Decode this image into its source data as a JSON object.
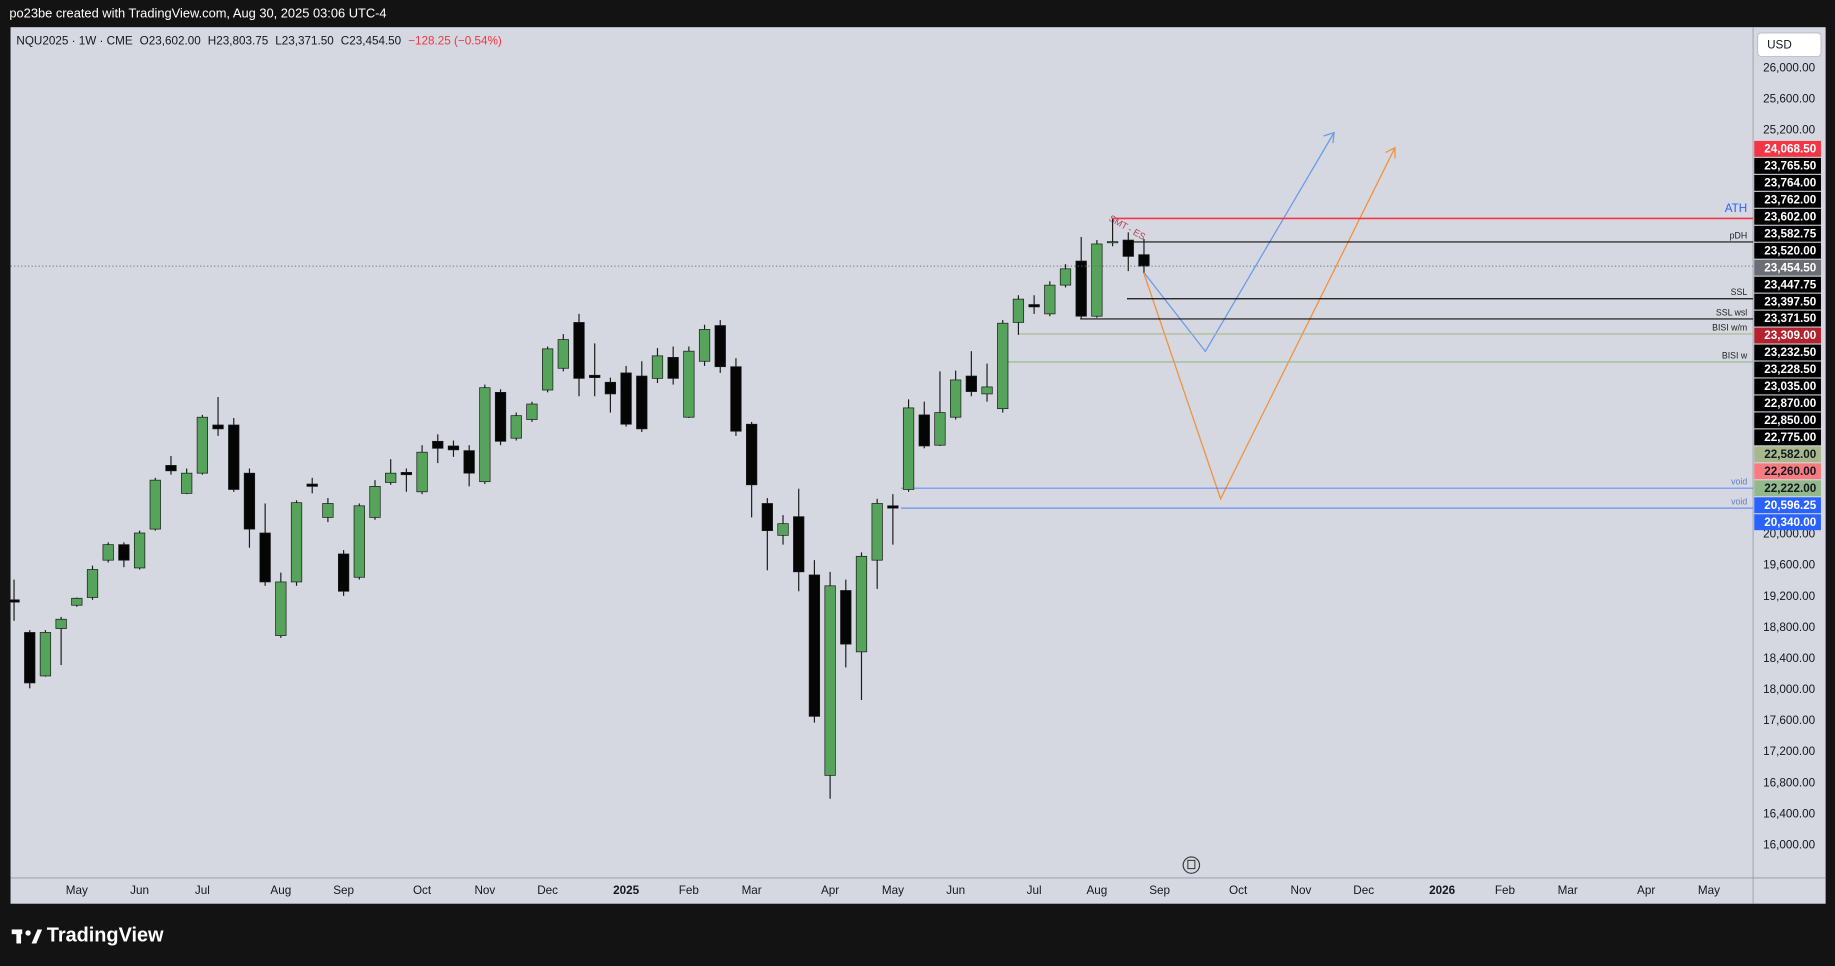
{
  "header": {
    "caption": "po23be created with TradingView.com, Aug 30, 2025 03:06 UTC-4"
  },
  "legend": [
    "NQU2025 · 1W · CME",
    "O23,602.00",
    "H23,803.75",
    "L23,371.50",
    "C23,454.50",
    "−128.25 (−0.54%)"
  ],
  "currency": "USD",
  "footer": "TradingView",
  "annotations": [
    "SMT - ES"
  ],
  "chart_data": {
    "type": "candlestick",
    "up_color": "#56a35b",
    "down_color": "#050505",
    "ylim": [
      15580,
      26530
    ],
    "yticks": [
      {
        "value": 26000,
        "label": "26,000.00"
      },
      {
        "value": 25600,
        "label": "25,600.00"
      },
      {
        "value": 25200,
        "label": "25,200.00"
      },
      {
        "value": 20000,
        "label": "20,000.00"
      },
      {
        "value": 19600,
        "label": "19,600.00"
      },
      {
        "value": 19200,
        "label": "19,200.00"
      },
      {
        "value": 18800,
        "label": "18,800.00"
      },
      {
        "value": 18400,
        "label": "18,400.00"
      },
      {
        "value": 18000,
        "label": "18,000.00"
      },
      {
        "value": 17600,
        "label": "17,600.00"
      },
      {
        "value": 17200,
        "label": "17,200.00"
      },
      {
        "value": 16800,
        "label": "16,800.00"
      },
      {
        "value": 16400,
        "label": "16,400.00"
      },
      {
        "value": 16000,
        "label": "16,000.00"
      }
    ],
    "grid": false,
    "categories": [
      null,
      null,
      null,
      null,
      "May",
      null,
      null,
      null,
      "Jun",
      null,
      null,
      null,
      "Jul",
      null,
      null,
      null,
      null,
      "Aug",
      null,
      null,
      null,
      "Sep",
      null,
      null,
      null,
      null,
      "Oct",
      null,
      null,
      null,
      "Nov",
      null,
      null,
      null,
      "Dec",
      null,
      null,
      null,
      null,
      "2025",
      null,
      null,
      null,
      "Feb",
      null,
      null,
      null,
      "Mar",
      null,
      null,
      null,
      null,
      "Apr",
      null,
      null,
      null,
      "May",
      null,
      null,
      null,
      "Jun",
      null,
      null,
      null,
      null,
      "Jul",
      null,
      null,
      null,
      "Aug",
      null,
      null,
      null,
      "Sep",
      null,
      null,
      null,
      null,
      "Oct",
      null,
      null,
      null,
      "Nov",
      null,
      null,
      null,
      "Dec",
      null,
      null,
      null,
      null,
      "2026",
      null,
      null,
      null,
      "Feb",
      null,
      null,
      null,
      "Mar",
      null,
      null,
      null,
      null,
      "Apr",
      null,
      null,
      null,
      "May",
      null,
      null
    ],
    "open": [
      19160,
      18740,
      18180,
      18790,
      19090,
      19190,
      19670,
      19870,
      19570,
      20070,
      20890,
      20530,
      20790,
      21410,
      21410,
      20790,
      20020,
      18700,
      19390,
      20650,
      20220,
      19750,
      19450,
      20220,
      20670,
      20800,
      20550,
      21200,
      21140,
      21080,
      20680,
      21830,
      21240,
      21480,
      21860,
      22140,
      22730,
      22050,
      21960,
      22080,
      22040,
      22010,
      22280,
      21510,
      22230,
      22690,
      22160,
      21420,
      20400,
      19990,
      20230,
      19480,
      16900,
      19280,
      18490,
      19670,
      20370,
      20580,
      21540,
      21150,
      21510,
      22040,
      21810,
      21620,
      22730,
      22960,
      22840,
      23210,
      23520,
      22810,
      23760,
      23790,
      23602,
      null,
      null,
      null,
      null,
      null,
      null,
      null,
      null,
      null,
      null,
      null,
      null,
      null,
      null,
      null,
      null,
      null,
      null,
      null,
      null,
      null,
      null,
      null,
      null,
      null,
      null,
      null,
      null,
      null,
      null,
      null,
      null,
      null,
      null,
      null,
      null,
      null,
      null
    ],
    "high": [
      19420,
      18770,
      18770,
      18940,
      19190,
      19600,
      19900,
      19900,
      20050,
      20730,
      21010,
      20850,
      21540,
      21770,
      21500,
      20850,
      20400,
      19510,
      20440,
      20730,
      20470,
      19800,
      20400,
      20700,
      20970,
      20850,
      21150,
      21290,
      21210,
      21150,
      21930,
      21870,
      21570,
      21710,
      22420,
      22580,
      22840,
      22460,
      22020,
      22170,
      22230,
      22400,
      22420,
      22420,
      22700,
      22760,
      22270,
      21450,
      20470,
      20250,
      20590,
      19670,
      19520,
      19420,
      19770,
      20460,
      20520,
      21740,
      21710,
      22100,
      22110,
      22360,
      22200,
      22760,
      23080,
      23080,
      23260,
      23480,
      23830,
      23790,
      24060,
      23890,
      23803.75,
      null,
      null,
      null,
      null,
      null,
      null,
      null,
      null,
      null,
      null,
      null,
      null,
      null,
      null,
      null,
      null,
      null,
      null,
      null,
      null,
      null,
      null,
      null,
      null,
      null,
      null,
      null,
      null,
      null,
      null,
      null,
      null,
      null,
      null,
      null,
      null,
      null,
      null
    ],
    "low": [
      18890,
      18020,
      18170,
      18320,
      19070,
      19160,
      19640,
      19580,
      19550,
      20050,
      20770,
      20520,
      20770,
      21270,
      20550,
      19830,
      19340,
      18670,
      19340,
      20530,
      20160,
      19210,
      19420,
      20190,
      20640,
      20550,
      20520,
      20920,
      21000,
      20620,
      20650,
      21150,
      21210,
      21450,
      21830,
      22100,
      21780,
      21780,
      21570,
      21390,
      21320,
      21950,
      21930,
      21500,
      22170,
      22080,
      21270,
      20220,
      19540,
      19870,
      19270,
      17580,
      16600,
      18290,
      17870,
      19300,
      19870,
      20550,
      21110,
      21140,
      21480,
      21780,
      21710,
      21570,
      22570,
      22840,
      22810,
      23180,
      22780,
      22790,
      23710,
      23390,
      23371.5,
      null,
      null,
      null,
      null,
      null,
      null,
      null,
      null,
      null,
      null,
      null,
      null,
      null,
      null,
      null,
      null,
      null,
      null,
      null,
      null,
      null,
      null,
      null,
      null,
      null,
      null,
      null,
      null,
      null,
      null,
      null,
      null,
      null,
      null,
      null,
      null,
      null,
      null
    ],
    "close": [
      19130,
      18090,
      18740,
      18910,
      19180,
      19550,
      19870,
      19670,
      20020,
      20700,
      20820,
      20790,
      21510,
      21360,
      20580,
      20070,
      19390,
      19390,
      20410,
      20620,
      20400,
      19270,
      20370,
      20620,
      20790,
      20770,
      21060,
      21110,
      21090,
      20790,
      21890,
      21200,
      21530,
      21680,
      22390,
      22510,
      22010,
      22020,
      21810,
      21420,
      21360,
      22300,
      22010,
      22360,
      22640,
      22160,
      21330,
      20640,
      20050,
      20140,
      19520,
      17660,
      19340,
      18590,
      19720,
      20400,
      20340,
      21630,
      21140,
      21570,
      21990,
      21840,
      21900,
      22720,
      23030,
      22930,
      23210,
      23420,
      22810,
      23740,
      23770,
      23580,
      23454.5,
      null,
      null,
      null,
      null,
      null,
      null,
      null,
      null,
      null,
      null,
      null,
      null,
      null,
      null,
      null,
      null,
      null,
      null,
      null,
      null,
      null,
      null,
      null,
      null,
      null,
      null,
      null,
      null,
      null,
      null,
      null,
      null,
      null,
      null,
      null,
      null,
      null,
      null
    ],
    "price_labels": [
      {
        "value": 24068.5,
        "label": "24,068.50",
        "color": "#f23645",
        "name": "ATH"
      },
      {
        "value": 23765.5,
        "label": "23,765.50",
        "color": "#000000",
        "name": "pDH"
      },
      {
        "value": 23764,
        "label": "23,764.00",
        "color": "#000000"
      },
      {
        "value": 23762,
        "label": "23,762.00",
        "color": "#000000"
      },
      {
        "value": 23602,
        "label": "23,602.00",
        "color": "#000000"
      },
      {
        "value": 23582.75,
        "label": "23,582.75",
        "color": "#000000"
      },
      {
        "value": 23520,
        "label": "23,520.00",
        "color": "#000000"
      },
      {
        "value": 23454.5,
        "label": "23,454.50",
        "color": "#6b6e75"
      },
      {
        "value": 23447.75,
        "label": "23,447.75",
        "color": "#000000"
      },
      {
        "value": 23397.5,
        "label": "23,397.50",
        "color": "#000000"
      },
      {
        "value": 23371.5,
        "label": "23,371.50",
        "color": "#000000"
      },
      {
        "value": 23309,
        "label": "23,309.00",
        "color": "#b2222f"
      },
      {
        "value": 23232.5,
        "label": "23,232.50",
        "color": "#000000"
      },
      {
        "value": 23228.5,
        "label": "23,228.50",
        "color": "#000000"
      },
      {
        "value": 23035,
        "label": "23,035.00",
        "color": "#000000",
        "name": "SSL"
      },
      {
        "value": 22870,
        "label": "22,870.00",
        "color": "#000000"
      },
      {
        "value": 22850,
        "label": "22,850.00",
        "color": "#000000"
      },
      {
        "value": 22775,
        "label": "22,775.00",
        "color": "#000000",
        "name": "SSL wsl"
      },
      {
        "value": 22582,
        "label": "22,582.00",
        "color": "#a9b88c",
        "name": "BISI w/m"
      },
      {
        "value": 22260,
        "label": "22,260.00",
        "color": "#f77c80"
      },
      {
        "value": 22222,
        "label": "22,222.00",
        "color": "#93b98a",
        "name": "BISI w"
      },
      {
        "value": 20596.25,
        "label": "20,596.25",
        "color": "#2962ff",
        "name": "void"
      },
      {
        "value": 20340,
        "label": "20,340.00",
        "color": "#2962ff",
        "name": "void"
      }
    ]
  }
}
